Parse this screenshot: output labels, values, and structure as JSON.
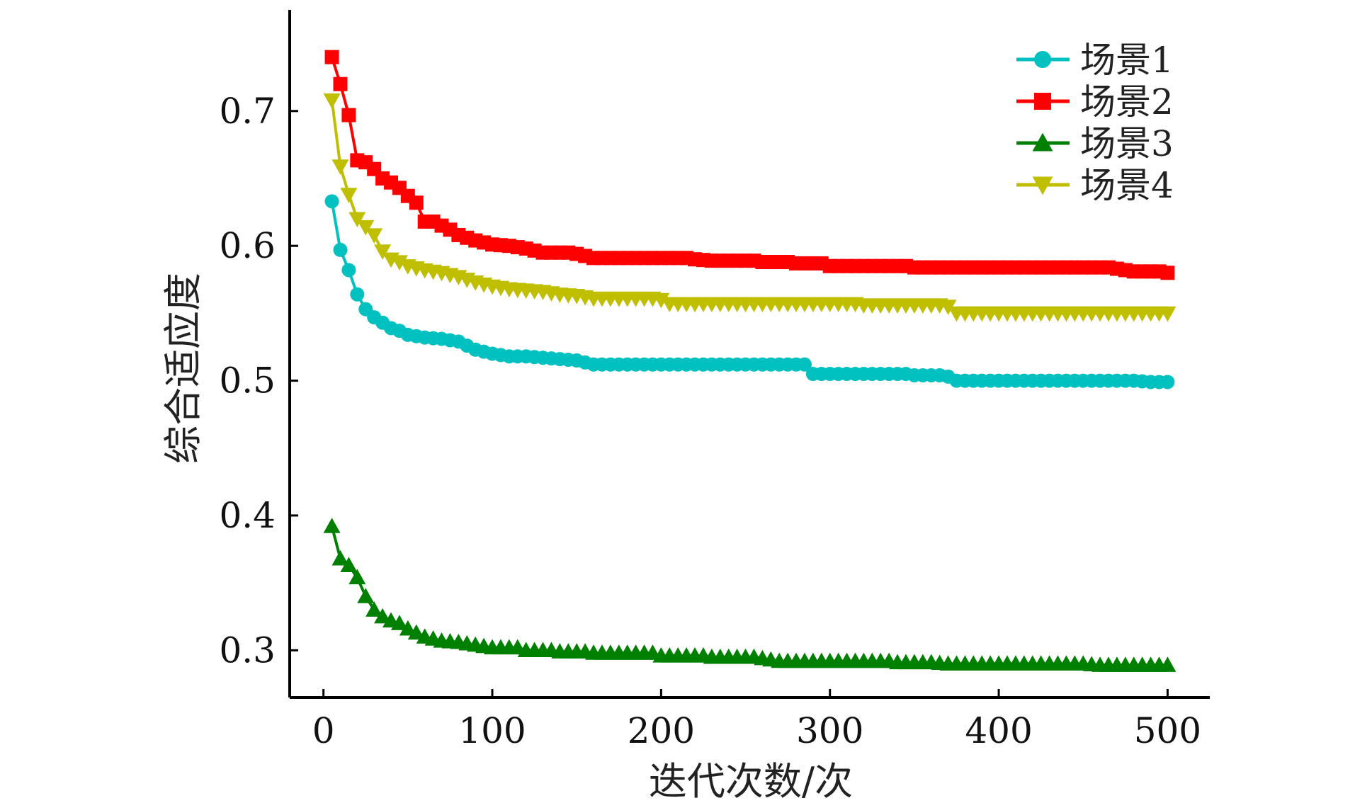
{
  "chart_data": {
    "type": "line",
    "title": "",
    "xlabel": "迭代次数/次",
    "ylabel": "综合适应度",
    "xlim": [
      -20,
      525
    ],
    "ylim": [
      0.265,
      0.775
    ],
    "xticks": [
      0,
      100,
      200,
      300,
      400,
      500
    ],
    "yticks": [
      0.3,
      0.4,
      0.5,
      0.6,
      0.7
    ],
    "xtick_labels": [
      "0",
      "100",
      "200",
      "300",
      "400",
      "500"
    ],
    "ytick_labels": [
      "0.3",
      "0.4",
      "0.5",
      "0.6",
      "0.7"
    ],
    "grid": false,
    "legend_position": "top-right",
    "series": [
      {
        "name": "场景1",
        "color": "#00C0C0",
        "marker": "circle",
        "points": [
          [
            5,
            0.633
          ],
          [
            10,
            0.597
          ],
          [
            15,
            0.582
          ],
          [
            20,
            0.564
          ],
          [
            25,
            0.553
          ],
          [
            30,
            0.547
          ],
          [
            35,
            0.543
          ],
          [
            40,
            0.539
          ],
          [
            45,
            0.537
          ],
          [
            50,
            0.534
          ],
          [
            60,
            0.532
          ],
          [
            70,
            0.531
          ],
          [
            80,
            0.529
          ],
          [
            90,
            0.523
          ],
          [
            100,
            0.52
          ],
          [
            110,
            0.518
          ],
          [
            120,
            0.518
          ],
          [
            130,
            0.517
          ],
          [
            140,
            0.516
          ],
          [
            150,
            0.515
          ],
          [
            160,
            0.512
          ],
          [
            200,
            0.512
          ],
          [
            240,
            0.512
          ],
          [
            285,
            0.512
          ],
          [
            290,
            0.505
          ],
          [
            330,
            0.505
          ],
          [
            350,
            0.504
          ],
          [
            370,
            0.503
          ],
          [
            372,
            0.5
          ],
          [
            420,
            0.5
          ],
          [
            460,
            0.5
          ],
          [
            480,
            0.5
          ],
          [
            490,
            0.499
          ],
          [
            500,
            0.499
          ]
        ]
      },
      {
        "name": "场景2",
        "color": "#FF0000",
        "marker": "square",
        "points": [
          [
            5,
            0.74
          ],
          [
            10,
            0.72
          ],
          [
            15,
            0.697
          ],
          [
            18,
            0.664
          ],
          [
            25,
            0.662
          ],
          [
            30,
            0.657
          ],
          [
            35,
            0.65
          ],
          [
            40,
            0.647
          ],
          [
            45,
            0.643
          ],
          [
            50,
            0.637
          ],
          [
            55,
            0.632
          ],
          [
            58,
            0.618
          ],
          [
            70,
            0.615
          ],
          [
            75,
            0.612
          ],
          [
            80,
            0.608
          ],
          [
            90,
            0.604
          ],
          [
            100,
            0.601
          ],
          [
            110,
            0.6
          ],
          [
            120,
            0.598
          ],
          [
            130,
            0.595
          ],
          [
            150,
            0.594
          ],
          [
            160,
            0.591
          ],
          [
            200,
            0.591
          ],
          [
            220,
            0.59
          ],
          [
            230,
            0.589
          ],
          [
            260,
            0.588
          ],
          [
            280,
            0.587
          ],
          [
            300,
            0.585
          ],
          [
            350,
            0.584
          ],
          [
            400,
            0.584
          ],
          [
            450,
            0.584
          ],
          [
            470,
            0.583
          ],
          [
            480,
            0.581
          ],
          [
            500,
            0.58
          ]
        ]
      },
      {
        "name": "场景3",
        "color": "#008000",
        "marker": "triangle-up",
        "points": [
          [
            5,
            0.392
          ],
          [
            10,
            0.368
          ],
          [
            15,
            0.363
          ],
          [
            20,
            0.354
          ],
          [
            25,
            0.34
          ],
          [
            30,
            0.33
          ],
          [
            35,
            0.325
          ],
          [
            40,
            0.322
          ],
          [
            45,
            0.32
          ],
          [
            50,
            0.316
          ],
          [
            55,
            0.313
          ],
          [
            60,
            0.31
          ],
          [
            70,
            0.307
          ],
          [
            80,
            0.306
          ],
          [
            90,
            0.304
          ],
          [
            100,
            0.302
          ],
          [
            120,
            0.3
          ],
          [
            140,
            0.299
          ],
          [
            160,
            0.298
          ],
          [
            200,
            0.296
          ],
          [
            230,
            0.295
          ],
          [
            260,
            0.294
          ],
          [
            270,
            0.292
          ],
          [
            300,
            0.292
          ],
          [
            340,
            0.291
          ],
          [
            360,
            0.291
          ],
          [
            370,
            0.29
          ],
          [
            400,
            0.29
          ],
          [
            450,
            0.29
          ],
          [
            460,
            0.289
          ],
          [
            500,
            0.289
          ]
        ]
      },
      {
        "name": "场景4",
        "color": "#BFBF00",
        "marker": "triangle-down",
        "points": [
          [
            5,
            0.708
          ],
          [
            10,
            0.659
          ],
          [
            15,
            0.638
          ],
          [
            20,
            0.62
          ],
          [
            25,
            0.614
          ],
          [
            30,
            0.608
          ],
          [
            35,
            0.596
          ],
          [
            40,
            0.59
          ],
          [
            45,
            0.588
          ],
          [
            50,
            0.585
          ],
          [
            60,
            0.582
          ],
          [
            70,
            0.58
          ],
          [
            80,
            0.577
          ],
          [
            90,
            0.573
          ],
          [
            100,
            0.57
          ],
          [
            110,
            0.568
          ],
          [
            120,
            0.567
          ],
          [
            130,
            0.566
          ],
          [
            140,
            0.564
          ],
          [
            150,
            0.563
          ],
          [
            160,
            0.561
          ],
          [
            200,
            0.56
          ],
          [
            205,
            0.557
          ],
          [
            250,
            0.557
          ],
          [
            300,
            0.557
          ],
          [
            320,
            0.556
          ],
          [
            350,
            0.556
          ],
          [
            370,
            0.555
          ],
          [
            375,
            0.55
          ],
          [
            420,
            0.55
          ],
          [
            460,
            0.55
          ],
          [
            500,
            0.55
          ]
        ]
      }
    ]
  }
}
